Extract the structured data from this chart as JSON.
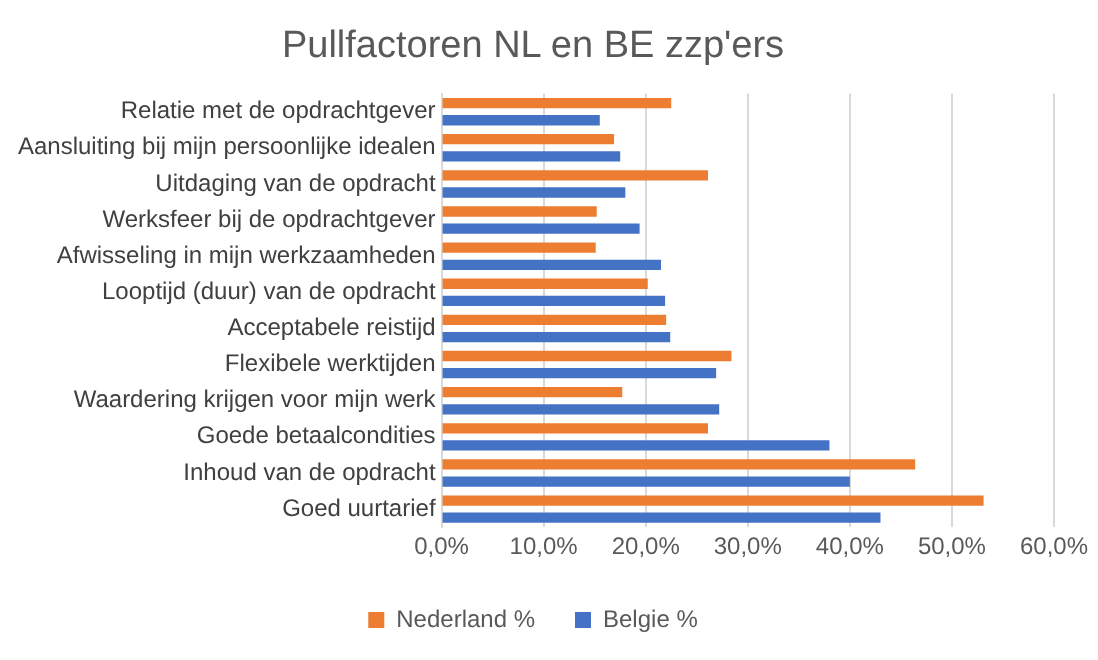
{
  "chart_data": {
    "type": "bar",
    "orientation": "horizontal",
    "title": "Pullfactoren NL en BE zzp'ers",
    "categories": [
      "Relatie met de opdrachtgever",
      "Aansluiting bij mijn persoonlijke idealen",
      "Uitdaging van de opdracht",
      "Werksfeer bij de opdrachtgever",
      "Afwisseling in mijn werkzaamheden",
      "Looptijd (duur) van de opdracht",
      "Acceptabele reistijd",
      "Flexibele werktijden",
      "Waardering krijgen voor mijn werk",
      "Goede betaalcondities",
      "Inhoud van de opdracht",
      "Goed uurtarief"
    ],
    "series": [
      {
        "name": "Nederland %",
        "color": "#ed7d31",
        "values": [
          22.5,
          16.9,
          26.1,
          15.2,
          15.1,
          20.2,
          22.0,
          28.4,
          17.7,
          26.1,
          46.4,
          53.1
        ]
      },
      {
        "name": "Belgie %",
        "color": "#4472c4",
        "values": [
          15.5,
          17.5,
          18.0,
          19.4,
          21.5,
          21.9,
          22.4,
          26.9,
          27.2,
          38.0,
          40.0,
          43.0
        ]
      }
    ],
    "xlim": [
      0,
      60
    ],
    "xticks": [
      {
        "value": 0,
        "label": "0,0%"
      },
      {
        "value": 10,
        "label": "10,0%"
      },
      {
        "value": 20,
        "label": "20,0%"
      },
      {
        "value": 30,
        "label": "30,0%"
      },
      {
        "value": 40,
        "label": "40,0%"
      },
      {
        "value": 50,
        "label": "50,0%"
      },
      {
        "value": 60,
        "label": "60,0%"
      }
    ],
    "grid": "x",
    "legend": "bottom"
  }
}
